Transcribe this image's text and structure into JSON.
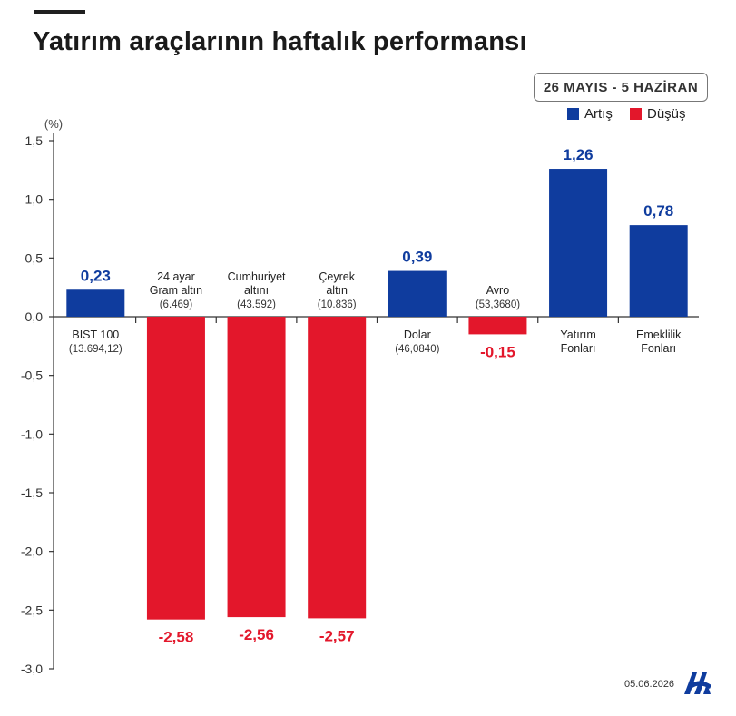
{
  "title": "Yatırım araçlarının haftalık performansı",
  "date_range": "26 MAYIS - 5 HAZİRAN",
  "legend": {
    "up_label": "Artış",
    "down_label": "Düşüş",
    "up_color": "#0f3c9e",
    "down_color": "#e3172b"
  },
  "footer_date": "05.06.2026",
  "logo_icon": "aa-logo-icon",
  "chart_data": {
    "type": "bar",
    "ylabel": "(%)",
    "ylim": [
      -3.0,
      1.5
    ],
    "yticks": [
      "1,5",
      "1,0",
      "0,5",
      "0,0",
      "-0,5",
      "-1,0",
      "-1,5",
      "-2,0",
      "-2,5",
      "-3,0"
    ],
    "ytick_values": [
      1.5,
      1.0,
      0.5,
      0.0,
      -0.5,
      -1.0,
      -1.5,
      -2.0,
      -2.5,
      -3.0
    ],
    "categories": [
      {
        "label": [
          "BIST 100"
        ],
        "sub": "(13.694,12)",
        "value": 0.23,
        "value_label": "0,23"
      },
      {
        "label": [
          "24 ayar",
          "Gram altın"
        ],
        "sub": "(6.469)",
        "value": -2.58,
        "value_label": "-2,58"
      },
      {
        "label": [
          "Cumhuriyet",
          "altını"
        ],
        "sub": "(43.592)",
        "value": -2.56,
        "value_label": "-2,56"
      },
      {
        "label": [
          "Çeyrek",
          "altın"
        ],
        "sub": "(10.836)",
        "value": -2.57,
        "value_label": "-2,57"
      },
      {
        "label": [
          "Dolar"
        ],
        "sub": "(46,0840)",
        "value": 0.39,
        "value_label": "0,39"
      },
      {
        "label": [
          "Avro"
        ],
        "sub": "(53,3680)",
        "value": -0.15,
        "value_label": "-0,15"
      },
      {
        "label": [
          "Yatırım",
          "Fonları"
        ],
        "sub": "",
        "value": 1.26,
        "value_label": "1,26"
      },
      {
        "label": [
          "Emeklilik",
          "Fonları"
        ],
        "sub": "",
        "value": 0.78,
        "value_label": "0,78"
      }
    ],
    "grid": false,
    "legend_position": "top-right"
  }
}
